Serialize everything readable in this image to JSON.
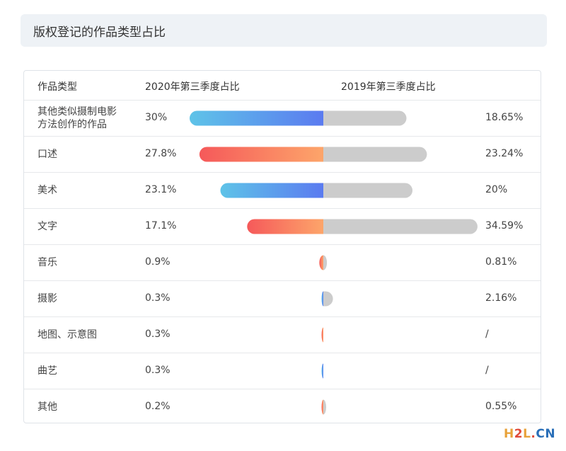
{
  "title": "版权登记的作品类型占比",
  "header": {
    "col_type": "作品类型",
    "col_2020": "2020年第三季度占比",
    "col_2019": "2019年第三季度占比"
  },
  "colors": {
    "blue_grad_start": "#5ec3e8",
    "blue_grad_end": "#5b7bf0",
    "orange_grad_start": "#f5595a",
    "orange_grad_end": "#fda56a",
    "gray_bar": "#cccccc"
  },
  "chart_data": {
    "type": "bar",
    "categories": [
      "其他类似摄制电影方法创作的作品",
      "口述",
      "美术",
      "文字",
      "音乐",
      "摄影",
      "地图、示意图",
      "曲艺",
      "其他"
    ],
    "series": [
      {
        "name": "2020年第三季度占比",
        "values": [
          30,
          27.8,
          23.1,
          17.1,
          0.9,
          0.3,
          0.3,
          0.3,
          0.2
        ]
      },
      {
        "name": "2019年第三季度占比",
        "values": [
          18.65,
          23.24,
          20,
          34.59,
          0.81,
          2.16,
          null,
          null,
          0.55
        ]
      }
    ]
  },
  "rows": [
    {
      "type_line1": "其他类似摄制电影",
      "type_line2": "方法创作的作品",
      "v2020": "30%",
      "v2019": "18.65%",
      "color": "blue"
    },
    {
      "type_line1": "口述",
      "type_line2": "",
      "v2020": "27.8%",
      "v2019": "23.24%",
      "color": "orange"
    },
    {
      "type_line1": "美术",
      "type_line2": "",
      "v2020": "23.1%",
      "v2019": "20%",
      "color": "blue"
    },
    {
      "type_line1": "文字",
      "type_line2": "",
      "v2020": "17.1%",
      "v2019": "34.59%",
      "color": "orange"
    },
    {
      "type_line1": "音乐",
      "type_line2": "",
      "v2020": "0.9%",
      "v2019": "0.81%",
      "color": "orange"
    },
    {
      "type_line1": "摄影",
      "type_line2": "",
      "v2020": "0.3%",
      "v2019": "2.16%",
      "color": "blue"
    },
    {
      "type_line1": "地图、示意图",
      "type_line2": "",
      "v2020": "0.3%",
      "v2019": "/",
      "color": "orange"
    },
    {
      "type_line1": "曲艺",
      "type_line2": "",
      "v2020": "0.3%",
      "v2019": "/",
      "color": "blue"
    },
    {
      "type_line1": "其他",
      "type_line2": "",
      "v2020": "0.2%",
      "v2019": "0.55%",
      "color": "orange"
    }
  ],
  "watermark": {
    "h": "H",
    "two": "2",
    "l": "L",
    "dot": ".",
    "cn": "CN"
  }
}
